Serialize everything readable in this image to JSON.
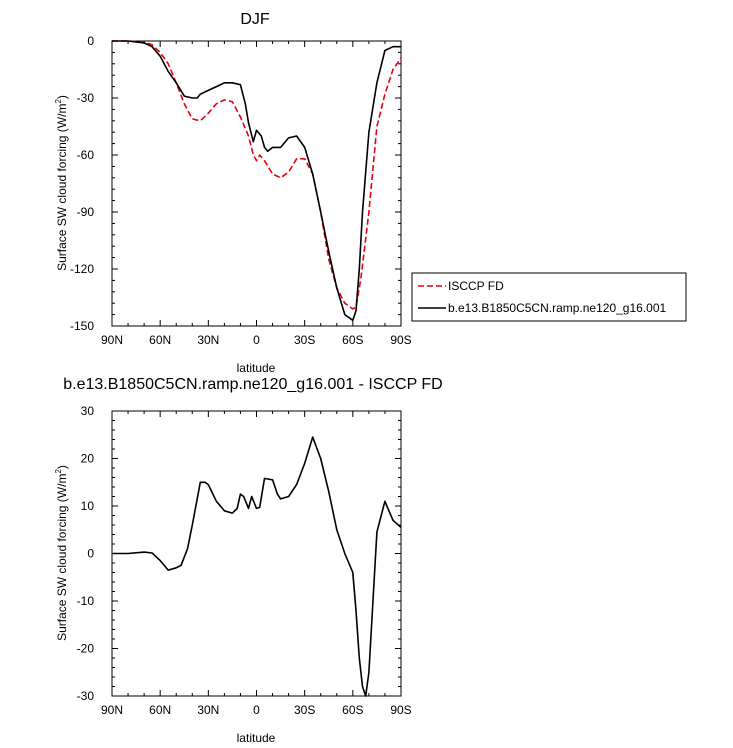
{
  "chart_data": [
    {
      "type": "line",
      "title": "DJF",
      "xlabel": "latitude",
      "ylabel": "Surface SW cloud forcing (W/m",
      "ylabel_sup": "2",
      "ylabel_end": ")",
      "xlim": [
        90,
        -90
      ],
      "ylim": [
        -150,
        0
      ],
      "x_ticks": [
        90,
        60,
        30,
        0,
        -30,
        -60,
        -90
      ],
      "x_tick_labels": [
        "90N",
        "60N",
        "30N",
        "0",
        "30S",
        "60S",
        "90S"
      ],
      "y_ticks": [
        0,
        -30,
        -60,
        -90,
        -120,
        -150
      ],
      "y_tick_labels": [
        "0",
        "-30",
        "-60",
        "-90",
        "-120",
        "-150"
      ],
      "legend": [
        "ISCCP FD",
        "b.e13.B1850C5CN.ramp.ne120_g16.001"
      ],
      "series": [
        {
          "name": "ISCCP FD",
          "color": "#e8000b",
          "dashed": true,
          "x": [
            90,
            80,
            70,
            65,
            60,
            55,
            50,
            45,
            40,
            35,
            30,
            25,
            20,
            15,
            10,
            5,
            2,
            0,
            -2,
            -5,
            -10,
            -15,
            -20,
            -25,
            -30,
            -35,
            -40,
            -45,
            -50,
            -55,
            -60,
            -62,
            -65,
            -70,
            -75,
            -80,
            -85,
            -90
          ],
          "values": [
            0,
            0,
            -0.5,
            -2,
            -6,
            -12,
            -22,
            -33,
            -41,
            -42,
            -38,
            -33,
            -31,
            -32,
            -40,
            -50,
            -60,
            -63,
            -60,
            -63,
            -70,
            -72,
            -69,
            -62,
            -62,
            -70,
            -90,
            -115,
            -130,
            -138,
            -141,
            -140,
            -125,
            -90,
            -45,
            -28,
            -15,
            -9
          ]
        },
        {
          "name": "b.e13.B1850C5CN.ramp.ne120_g16.001",
          "color": "#000000",
          "dashed": false,
          "x": [
            90,
            80,
            70,
            65,
            60,
            55,
            50,
            45,
            40,
            37,
            35,
            30,
            25,
            20,
            15,
            10,
            7,
            5,
            2,
            0,
            -3,
            -5,
            -7,
            -10,
            -15,
            -20,
            -25,
            -30,
            -35,
            -40,
            -45,
            -50,
            -55,
            -60,
            -62,
            -64,
            -66,
            -70,
            -75,
            -80,
            -85,
            -90
          ],
          "values": [
            0,
            0,
            -1,
            -3,
            -8,
            -16,
            -22,
            -29,
            -30,
            -30,
            -28,
            -26,
            -24,
            -22,
            -22,
            -23,
            -33,
            -43,
            -53,
            -47,
            -50,
            -56,
            -58,
            -56,
            -56,
            -51,
            -50,
            -56,
            -70,
            -90,
            -111,
            -130,
            -144,
            -147,
            -142,
            -120,
            -90,
            -48,
            -22,
            -5,
            -3,
            -3
          ]
        }
      ]
    },
    {
      "type": "line",
      "title": "b.e13.B1850C5CN.ramp.ne120_g16.001 - ISCCP FD",
      "xlabel": "latitude",
      "ylabel": "Surface SW cloud forcing (W/m",
      "ylabel_sup": "2",
      "ylabel_end": ")",
      "xlim": [
        90,
        -90
      ],
      "ylim": [
        -30,
        30
      ],
      "x_ticks": [
        90,
        60,
        30,
        0,
        -30,
        -60,
        -90
      ],
      "x_tick_labels": [
        "90N",
        "60N",
        "30N",
        "0",
        "30S",
        "60S",
        "90S"
      ],
      "y_ticks": [
        30,
        20,
        10,
        0,
        -10,
        -20,
        -30
      ],
      "y_tick_labels": [
        "30",
        "20",
        "10",
        "0",
        "-10",
        "-20",
        "-30"
      ],
      "series": [
        {
          "color": "#000000",
          "dashed": false,
          "x": [
            90,
            80,
            70,
            65,
            60,
            55,
            50,
            47,
            43,
            40,
            35,
            32,
            30,
            25,
            20,
            15,
            12,
            10,
            8,
            5,
            3,
            0,
            -2,
            -5,
            -10,
            -13,
            -15,
            -20,
            -25,
            -30,
            -35,
            -40,
            -45,
            -50,
            -55,
            -60,
            -62,
            -64,
            -66,
            -68,
            -70,
            -75,
            -80,
            -85,
            -90
          ],
          "values": [
            0,
            0,
            0.3,
            0.1,
            -1.5,
            -3.5,
            -3,
            -2.5,
            1,
            6,
            15,
            15,
            14.5,
            11,
            9,
            8.5,
            9.5,
            12.5,
            12,
            9.5,
            12,
            9.5,
            9.7,
            15.8,
            15.5,
            12.5,
            11.5,
            12,
            14.5,
            19,
            24.5,
            20,
            13,
            5,
            0,
            -4,
            -12,
            -22,
            -28,
            -30,
            -25,
            4.5,
            11,
            7,
            5.5
          ]
        }
      ]
    }
  ]
}
